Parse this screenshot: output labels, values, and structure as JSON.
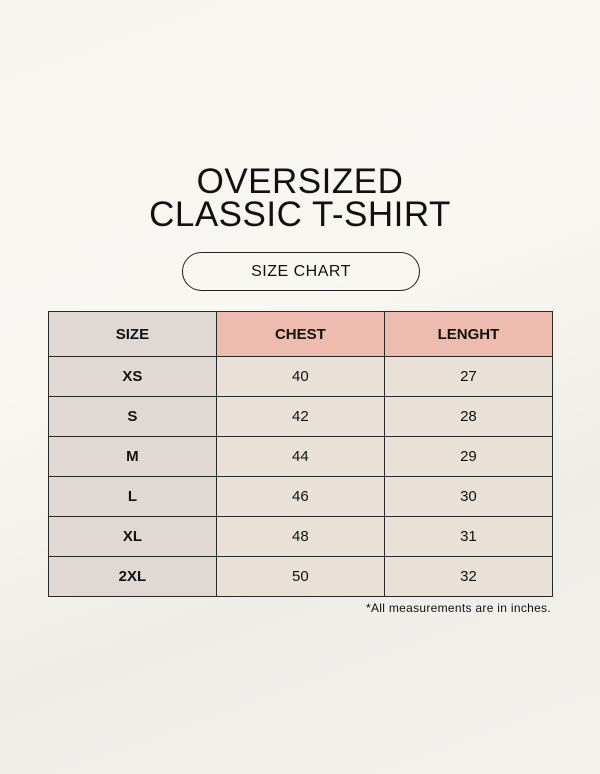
{
  "title": {
    "line1": "OVERSIZED",
    "line2": "CLASSIC T-SHIRT"
  },
  "subtitle": "SIZE CHART",
  "table": {
    "headers": [
      "SIZE",
      "CHEST",
      "LENGHT"
    ],
    "rows": [
      [
        "XS",
        "40",
        "27"
      ],
      [
        "S",
        "42",
        "28"
      ],
      [
        "M",
        "44",
        "29"
      ],
      [
        "L",
        "46",
        "30"
      ],
      [
        "XL",
        "48",
        "31"
      ],
      [
        "2XL",
        "50",
        "32"
      ]
    ]
  },
  "note": "*All measurements are in inches.",
  "colors": {
    "size_column": "#e0d8d4",
    "measure_header": "#eebcae",
    "cell": "#e9e1d7"
  }
}
